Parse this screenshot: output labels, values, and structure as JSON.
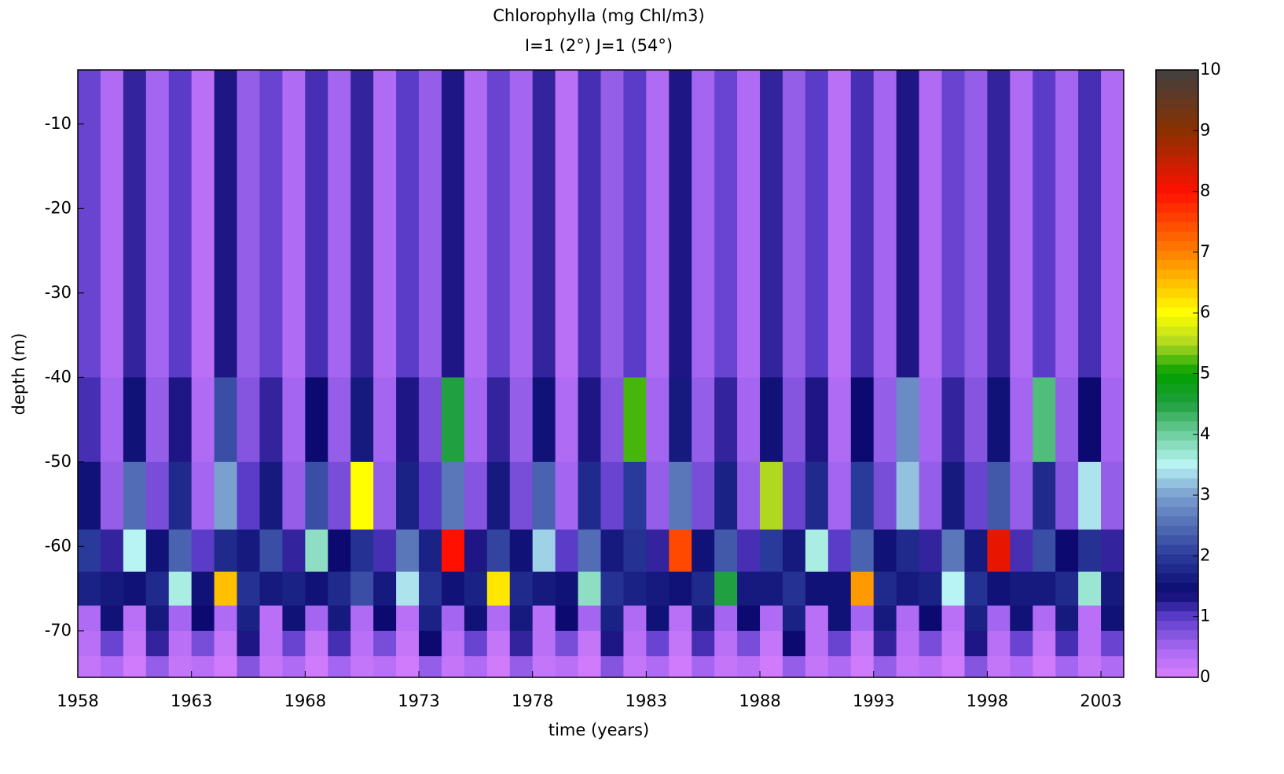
{
  "chart_data": {
    "type": "heatmap",
    "title": "Chlorophylla (mg Chl/m3)",
    "subtitle": "I=1 (2°) J=1 (54°)",
    "xlabel": "time (years)",
    "ylabel": "depth (m)",
    "x_edges": [
      1958,
      1959,
      1960,
      1961,
      1962,
      1963,
      1964,
      1965,
      1966,
      1967,
      1968,
      1969,
      1970,
      1971,
      1972,
      1973,
      1974,
      1975,
      1976,
      1977,
      1978,
      1979,
      1980,
      1981,
      1982,
      1983,
      1984,
      1985,
      1986,
      1987,
      1988,
      1989,
      1990,
      1991,
      1992,
      1993,
      1994,
      1995,
      1996,
      1997,
      1998,
      1999,
      2000,
      2001,
      2002,
      2003,
      2004
    ],
    "y_edges": [
      -3.6,
      -40,
      -50,
      -58,
      -63,
      -67,
      -70,
      -73,
      -75.5
    ],
    "z": [
      [
        0.9,
        0.4,
        1.2,
        0.5,
        1.0,
        0.3,
        1.3,
        0.6,
        0.9,
        0.4,
        1.1,
        0.5,
        1.2,
        0.4,
        1.0,
        0.6,
        1.3,
        0.4,
        0.9,
        0.5,
        1.2,
        0.3,
        1.1,
        0.6,
        1.0,
        0.4,
        1.3,
        0.5,
        0.9,
        0.4,
        1.2,
        0.6,
        1.0,
        0.3,
        1.1,
        0.5,
        1.3,
        0.4,
        0.9,
        0.6,
        1.2,
        0.4,
        1.0,
        0.5,
        1.1,
        0.4
      ],
      [
        1.1,
        0.5,
        1.5,
        0.6,
        1.3,
        0.4,
        2.2,
        0.7,
        1.2,
        0.5,
        1.4,
        0.6,
        1.6,
        0.5,
        1.3,
        0.8,
        4.5,
        0.5,
        1.2,
        0.6,
        1.5,
        0.4,
        1.3,
        0.7,
        5.2,
        0.5,
        1.6,
        0.6,
        1.2,
        0.5,
        1.5,
        0.7,
        1.3,
        0.4,
        1.4,
        0.6,
        2.8,
        0.5,
        1.2,
        0.7,
        1.5,
        0.5,
        4.2,
        0.6,
        1.4,
        0.5
      ],
      [
        1.5,
        0.6,
        2.5,
        0.8,
        1.8,
        0.5,
        3.0,
        1.0,
        1.6,
        0.6,
        2.2,
        0.8,
        6.0,
        0.6,
        1.7,
        1.0,
        2.6,
        0.7,
        1.6,
        0.8,
        2.4,
        0.5,
        1.8,
        0.9,
        2.0,
        0.6,
        2.6,
        0.8,
        1.7,
        0.6,
        5.5,
        0.9,
        1.8,
        0.5,
        2.0,
        0.8,
        3.2,
        0.6,
        1.6,
        0.9,
        2.3,
        0.6,
        1.8,
        0.7,
        3.4,
        0.6
      ],
      [
        2.0,
        1.2,
        3.5,
        1.5,
        2.4,
        1.0,
        1.8,
        1.6,
        2.2,
        1.2,
        3.8,
        1.4,
        1.9,
        1.1,
        2.6,
        1.7,
        8.0,
        1.3,
        2.1,
        1.5,
        3.3,
        1.0,
        2.5,
        1.6,
        1.9,
        1.2,
        7.5,
        1.5,
        2.3,
        1.1,
        2.0,
        1.6,
        3.6,
        1.0,
        2.4,
        1.5,
        1.8,
        1.2,
        2.6,
        1.6,
        8.2,
        1.1,
        2.2,
        1.4,
        1.9,
        1.2
      ],
      [
        1.7,
        1.6,
        1.5,
        1.8,
        3.6,
        1.5,
        6.5,
        1.9,
        1.6,
        1.7,
        1.5,
        1.8,
        2.2,
        1.6,
        3.4,
        1.9,
        1.5,
        1.7,
        6.2,
        1.8,
        1.6,
        1.5,
        3.8,
        1.9,
        1.7,
        1.6,
        1.5,
        1.8,
        4.5,
        1.6,
        1.6,
        1.9,
        1.5,
        1.5,
        6.8,
        1.8,
        1.6,
        1.7,
        3.5,
        1.9,
        1.5,
        1.6,
        1.6,
        1.8,
        3.7,
        1.6
      ],
      [
        0.4,
        1.5,
        0.3,
        1.6,
        0.5,
        1.4,
        0.4,
        1.7,
        0.3,
        1.5,
        0.5,
        1.6,
        0.4,
        1.4,
        0.3,
        1.7,
        0.5,
        1.5,
        0.4,
        1.6,
        0.3,
        1.4,
        0.5,
        1.7,
        0.4,
        1.5,
        0.3,
        1.6,
        0.5,
        1.4,
        0.4,
        1.7,
        0.3,
        1.5,
        0.5,
        1.6,
        0.4,
        1.4,
        0.3,
        1.7,
        0.5,
        1.5,
        0.4,
        1.6,
        0.3,
        1.5
      ],
      [
        0.3,
        0.9,
        0.2,
        1.2,
        0.3,
        0.8,
        0.2,
        1.3,
        0.3,
        0.9,
        0.2,
        1.1,
        0.3,
        0.8,
        0.2,
        1.4,
        0.3,
        0.9,
        0.2,
        1.2,
        0.3,
        0.8,
        0.2,
        1.3,
        0.3,
        0.9,
        0.2,
        1.1,
        0.3,
        0.8,
        0.2,
        1.4,
        0.3,
        0.9,
        0.2,
        1.2,
        0.3,
        0.8,
        0.2,
        1.3,
        0.3,
        0.9,
        0.2,
        1.1,
        0.3,
        0.9
      ],
      [
        0.2,
        0.4,
        0.1,
        0.6,
        0.2,
        0.3,
        0.1,
        0.7,
        0.2,
        0.4,
        0.1,
        0.5,
        0.2,
        0.3,
        0.1,
        0.6,
        0.2,
        0.4,
        0.1,
        0.6,
        0.2,
        0.3,
        0.1,
        0.7,
        0.2,
        0.4,
        0.1,
        0.5,
        0.2,
        0.3,
        0.1,
        0.6,
        0.2,
        0.4,
        0.1,
        0.6,
        0.2,
        0.3,
        0.1,
        0.7,
        0.2,
        0.4,
        0.1,
        0.5,
        0.2,
        0.4
      ]
    ],
    "xlim": [
      1958,
      2004
    ],
    "xticks": [
      1958,
      1963,
      1968,
      1973,
      1978,
      1983,
      1988,
      1993,
      1998,
      2003
    ],
    "ylim": [
      -75.5,
      -3.6
    ],
    "yticks": [
      -70,
      -60,
      -50,
      -40,
      -30,
      -20,
      -10
    ],
    "clim": [
      0,
      10
    ],
    "cticks": [
      0,
      1,
      2,
      3,
      4,
      5,
      6,
      7,
      8,
      9,
      10
    ],
    "colormap": [
      [
        0,
        "#da80ff"
      ],
      [
        0.5,
        "#a466f0"
      ],
      [
        1,
        "#5a3cc8"
      ],
      [
        1.4,
        "#0c0a70"
      ],
      [
        2,
        "#2a3a9a"
      ],
      [
        3,
        "#7aa0d0"
      ],
      [
        3.5,
        "#b8f4f4"
      ],
      [
        4,
        "#70d0a0"
      ],
      [
        4.5,
        "#20a040"
      ],
      [
        5,
        "#00a000"
      ],
      [
        5.5,
        "#b0d820"
      ],
      [
        6,
        "#ffff00"
      ],
      [
        7,
        "#ff8000"
      ],
      [
        8,
        "#ff1000"
      ],
      [
        9,
        "#8a3000"
      ],
      [
        10,
        "#404040"
      ]
    ]
  }
}
